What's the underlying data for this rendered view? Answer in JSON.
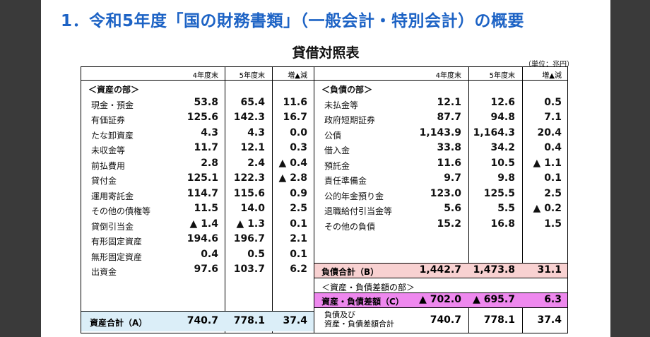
{
  "slide_title": "1．令和5年度「国の財務書類」（一般会計・特別会計）の概要",
  "bs_title": "貸借対照表",
  "unit": "（単位：兆円）",
  "columns": [
    "4年度末",
    "5年度末",
    "増▲減"
  ],
  "assets": {
    "section_label": "＜資産の部＞",
    "rows": [
      {
        "label": "現金・預金",
        "y4": "53.8",
        "y5": "65.4",
        "diff": "11.6"
      },
      {
        "label": "有価証券",
        "y4": "125.6",
        "y5": "142.3",
        "diff": "16.7"
      },
      {
        "label": "たな卸資産",
        "y4": "4.3",
        "y5": "4.3",
        "diff": "0.0"
      },
      {
        "label": "未収金等",
        "y4": "11.7",
        "y5": "12.1",
        "diff": "0.3"
      },
      {
        "label": "前払費用",
        "y4": "2.8",
        "y5": "2.4",
        "diff": "▲ 0.4"
      },
      {
        "label": "貸付金",
        "y4": "125.1",
        "y5": "122.3",
        "diff": "▲ 2.8"
      },
      {
        "label": "運用寄託金",
        "y4": "114.7",
        "y5": "115.6",
        "diff": "0.9"
      },
      {
        "label": "その他の債権等",
        "y4": "11.5",
        "y5": "14.0",
        "diff": "2.5"
      },
      {
        "label": "貸倒引当金",
        "y4": "▲ 1.4",
        "y5": "▲ 1.3",
        "diff": "0.1"
      },
      {
        "label": "有形固定資産",
        "y4": "194.6",
        "y5": "196.7",
        "diff": "2.1"
      },
      {
        "label": "無形固定資産",
        "y4": "0.4",
        "y5": "0.5",
        "diff": "0.1"
      },
      {
        "label": "出資金",
        "y4": "97.6",
        "y5": "103.7",
        "diff": "6.2"
      }
    ],
    "total": {
      "label": "資産合計（A）",
      "y4": "740.7",
      "y5": "778.1",
      "diff": "37.4"
    }
  },
  "liabilities": {
    "section_label": "＜負債の部＞",
    "rows": [
      {
        "label": "未払金等",
        "y4": "12.1",
        "y5": "12.6",
        "diff": "0.5"
      },
      {
        "label": "政府短期証券",
        "y4": "87.7",
        "y5": "94.8",
        "diff": "7.1"
      },
      {
        "label": "公債",
        "y4": "1,143.9",
        "y5": "1,164.3",
        "diff": "20.4"
      },
      {
        "label": "借入金",
        "y4": "33.8",
        "y5": "34.2",
        "diff": "0.4"
      },
      {
        "label": "預託金",
        "y4": "11.6",
        "y5": "10.5",
        "diff": "▲ 1.1"
      },
      {
        "label": "責任準備金",
        "y4": "9.7",
        "y5": "9.8",
        "diff": "0.1"
      },
      {
        "label": "公的年金預り金",
        "y4": "123.0",
        "y5": "125.5",
        "diff": "2.5"
      },
      {
        "label": "退職給付引当金等",
        "y4": "5.6",
        "y5": "5.5",
        "diff": "▲ 0.2"
      },
      {
        "label": "その他の負債",
        "y4": "15.2",
        "y5": "16.8",
        "diff": "1.5"
      }
    ],
    "total": {
      "label": "負債合計（B）",
      "y4": "1,442.7",
      "y5": "1,473.8",
      "diff": "31.1"
    },
    "net_section_label": "＜資産・負債差額の部＞",
    "net": {
      "label": "資産・負債差額（C）",
      "y4": "▲ 702.0",
      "y5": "▲ 695.7",
      "diff": "6.3"
    },
    "grand_total": {
      "label_line1": "負債及び",
      "label_line2": "資産・負債差額合計",
      "y4": "740.7",
      "y5": "778.1",
      "diff": "37.4"
    }
  }
}
